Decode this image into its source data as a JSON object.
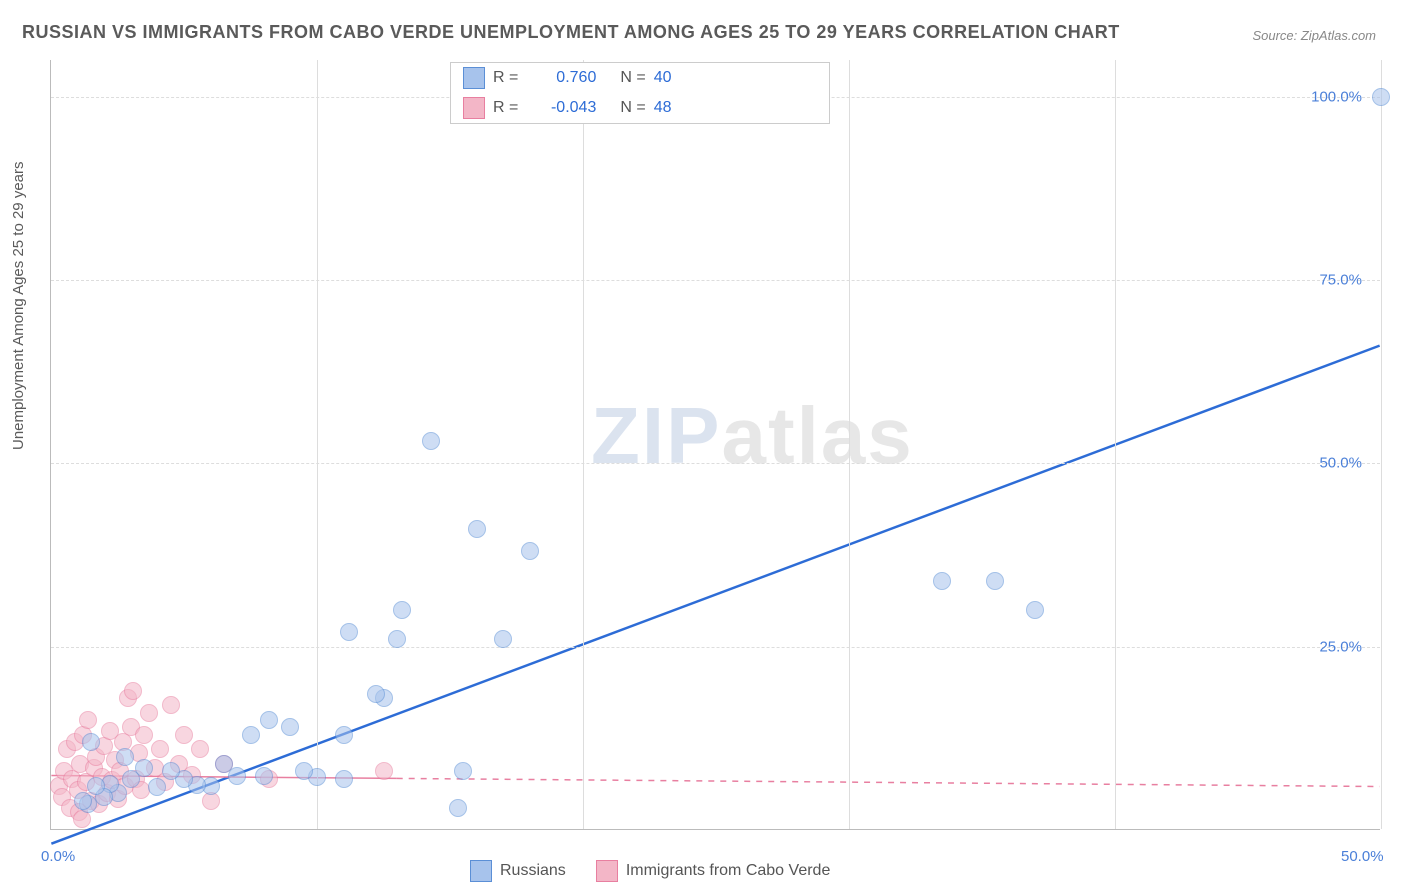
{
  "title": "RUSSIAN VS IMMIGRANTS FROM CABO VERDE UNEMPLOYMENT AMONG AGES 25 TO 29 YEARS CORRELATION CHART",
  "source": "Source: ZipAtlas.com",
  "y_axis_label": "Unemployment Among Ages 25 to 29 years",
  "watermark_a": "ZIP",
  "watermark_b": "atlas",
  "chart": {
    "type": "scatter",
    "xlim": [
      0,
      50
    ],
    "ylim": [
      0,
      105
    ],
    "x_ticks": [
      0,
      50
    ],
    "x_tick_labels": [
      "0.0%",
      "50.0%"
    ],
    "x_minor_grid": [
      10,
      20,
      30,
      40,
      50
    ],
    "y_ticks": [
      25,
      50,
      75,
      100
    ],
    "y_tick_labels": [
      "25.0%",
      "50.0%",
      "75.0%",
      "100.0%"
    ],
    "background": "#ffffff",
    "grid_color": "#dddddd",
    "axis_color": "#bbbbbb",
    "marker_radius": 9,
    "marker_opacity": 0.55,
    "title_color": "#5a5a5a",
    "tick_label_color": "#4a7fd8",
    "title_fontsize": 18,
    "label_fontsize": 15
  },
  "series": {
    "russians": {
      "label": "Russians",
      "fill": "#a7c3ec",
      "stroke": "#5b8fd6",
      "line_color": "#2d6cd6",
      "line_width": 2.5,
      "line_dash": "none",
      "R_label": "R =",
      "R_value": "0.760",
      "N_label": "N =",
      "N_value": "40",
      "trend": {
        "x1": 0,
        "y1": -2,
        "x2": 50,
        "y2": 66
      },
      "points": [
        [
          50,
          100
        ],
        [
          37,
          30
        ],
        [
          35.5,
          34
        ],
        [
          33.5,
          34
        ],
        [
          18,
          38
        ],
        [
          16,
          41
        ],
        [
          14.3,
          53
        ],
        [
          13.2,
          30
        ],
        [
          13,
          26
        ],
        [
          15.5,
          8
        ],
        [
          15.3,
          3
        ],
        [
          12.5,
          18
        ],
        [
          12.2,
          18.5
        ],
        [
          11.2,
          27
        ],
        [
          11,
          13
        ],
        [
          11,
          7
        ],
        [
          10,
          7.2
        ],
        [
          9.5,
          8
        ],
        [
          9,
          14
        ],
        [
          8.2,
          15
        ],
        [
          8,
          7.3
        ],
        [
          7.5,
          13
        ],
        [
          7,
          7.4
        ],
        [
          6.5,
          9
        ],
        [
          6,
          6
        ],
        [
          5.5,
          6.2
        ],
        [
          5,
          7
        ],
        [
          4.5,
          8
        ],
        [
          4,
          5.8
        ],
        [
          3.5,
          8.5
        ],
        [
          3,
          7
        ],
        [
          2.8,
          10
        ],
        [
          2.5,
          5
        ],
        [
          2.2,
          6.3
        ],
        [
          2,
          4.5
        ],
        [
          1.7,
          6
        ],
        [
          1.4,
          3.5
        ],
        [
          1.2,
          4
        ],
        [
          1.5,
          12
        ],
        [
          17,
          26
        ]
      ]
    },
    "cabo_verde": {
      "label": "Immigrants from Cabo Verde",
      "fill": "#f3b6c7",
      "stroke": "#e87fa0",
      "line_color": "#e87fa0",
      "line_width": 1.5,
      "line_dash": "6,6",
      "R_label": "R =",
      "R_value": "-0.043",
      "N_label": "N =",
      "N_value": "48",
      "trend": {
        "x1": 0,
        "y1": 7.3,
        "x2": 50,
        "y2": 5.8
      },
      "trend_solid_max_x": 13,
      "points": [
        [
          0.3,
          6
        ],
        [
          0.4,
          4.5
        ],
        [
          0.5,
          8
        ],
        [
          0.6,
          11
        ],
        [
          0.7,
          3
        ],
        [
          0.8,
          7
        ],
        [
          0.9,
          12
        ],
        [
          1,
          5.5
        ],
        [
          1.05,
          2.5
        ],
        [
          1.1,
          9
        ],
        [
          1.2,
          13
        ],
        [
          1.3,
          6.5
        ],
        [
          1.4,
          15
        ],
        [
          1.5,
          4
        ],
        [
          1.6,
          8.5
        ],
        [
          1.7,
          10
        ],
        [
          1.8,
          3.5
        ],
        [
          1.9,
          7.2
        ],
        [
          2,
          11.5
        ],
        [
          2.1,
          5
        ],
        [
          2.2,
          13.5
        ],
        [
          2.3,
          6.8
        ],
        [
          2.4,
          9.5
        ],
        [
          2.5,
          4.2
        ],
        [
          2.6,
          8
        ],
        [
          2.7,
          12
        ],
        [
          2.8,
          6
        ],
        [
          2.9,
          18
        ],
        [
          3,
          14
        ],
        [
          3.1,
          19
        ],
        [
          3.2,
          7
        ],
        [
          3.3,
          10.5
        ],
        [
          3.4,
          5.5
        ],
        [
          3.5,
          13
        ],
        [
          3.7,
          16
        ],
        [
          3.9,
          8.5
        ],
        [
          4.1,
          11
        ],
        [
          4.3,
          6.5
        ],
        [
          4.5,
          17
        ],
        [
          4.8,
          9
        ],
        [
          5,
          13
        ],
        [
          5.3,
          7.5
        ],
        [
          5.6,
          11
        ],
        [
          12.5,
          8
        ],
        [
          8.2,
          7
        ],
        [
          6,
          4
        ],
        [
          6.5,
          9
        ],
        [
          1.15,
          1.5
        ]
      ]
    }
  }
}
